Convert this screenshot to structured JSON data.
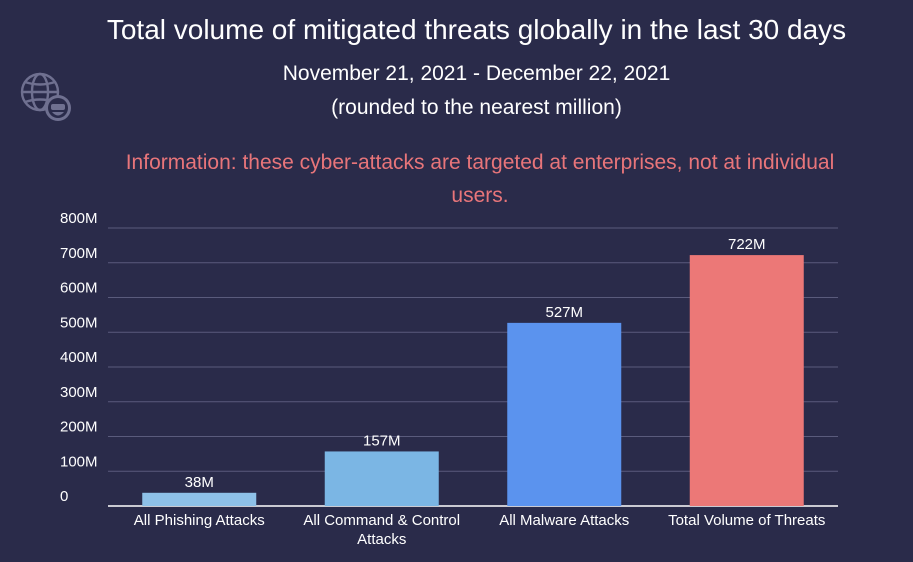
{
  "colors": {
    "background": "#2a2b4a",
    "note": "#e8757a",
    "grid": "#5a5b7c",
    "text": "#ffffff"
  },
  "icon": "globe-logo-icon",
  "chart_data": {
    "type": "bar",
    "title": "Total volume of mitigated threats globally in the last 30 days",
    "subtitle": "November 21, 2021 - December 22, 2021",
    "subtitle2": "(rounded to the nearest million)",
    "note": "Information: these cyber-attacks are targeted at enterprises, not at individual users.",
    "categories": [
      [
        "All Phishing Attacks"
      ],
      [
        "All Command & Control",
        "Attacks"
      ],
      [
        "All Malware Attacks"
      ],
      [
        "Total Volume of Threats"
      ]
    ],
    "values": [
      38,
      157,
      527,
      722
    ],
    "value_labels": [
      "38M",
      "157M",
      "527M",
      "722M"
    ],
    "bar_colors": [
      "#8ec1e8",
      "#7bb6e4",
      "#5b93ee",
      "#ec7877"
    ],
    "y_ticks": [
      0,
      100,
      200,
      300,
      400,
      500,
      600,
      700,
      800
    ],
    "y_tick_labels": [
      "0",
      "100M",
      "200M",
      "300M",
      "400M",
      "500M",
      "600M",
      "700M",
      "800M"
    ],
    "ylim": [
      0,
      800
    ],
    "grid": true,
    "legend": "none"
  }
}
